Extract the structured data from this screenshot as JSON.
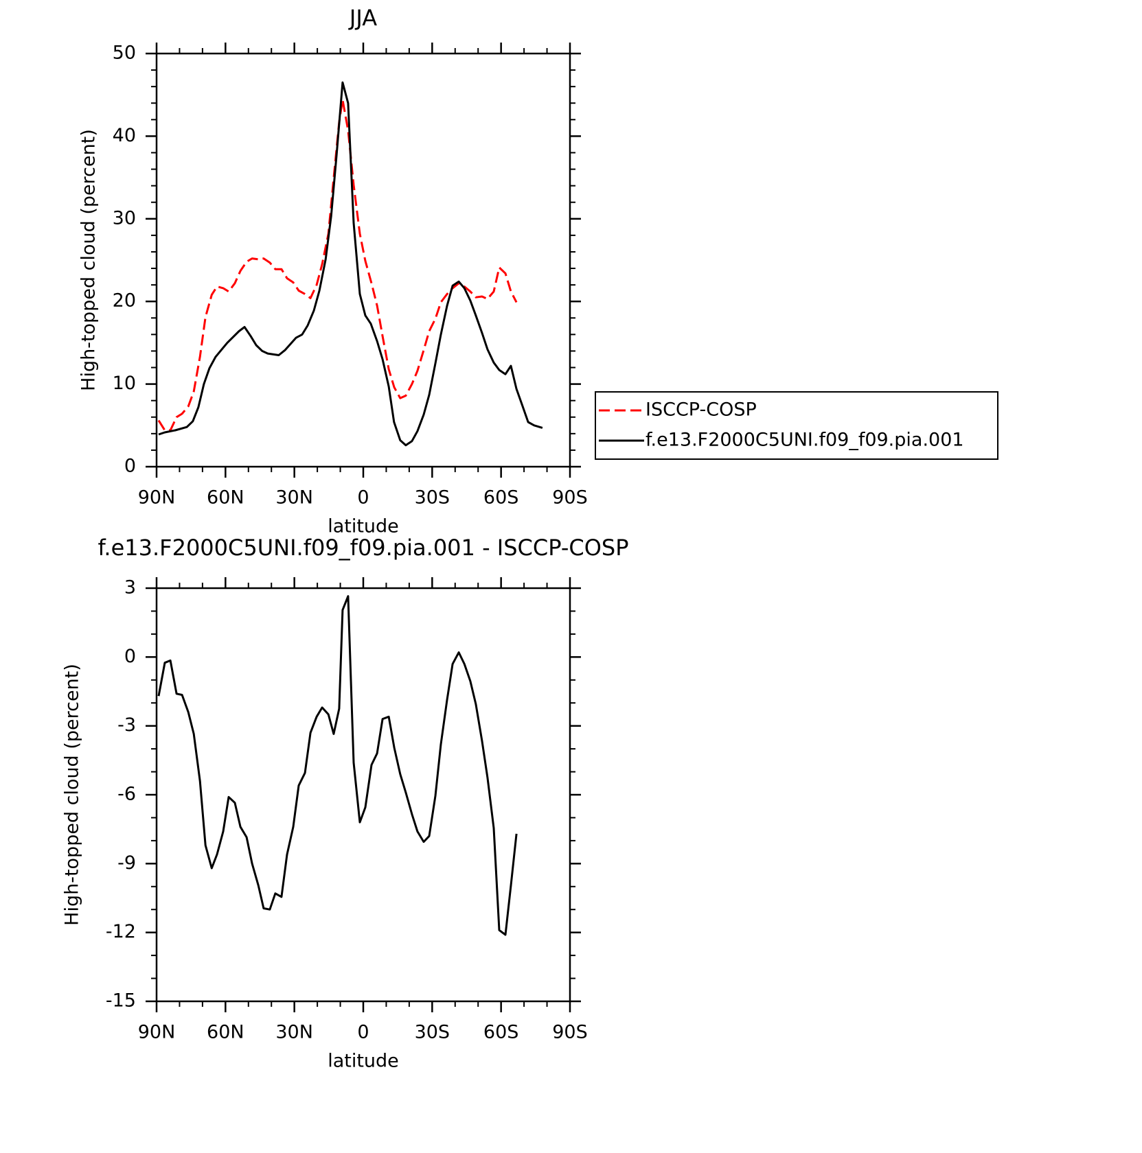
{
  "chart_data": [
    {
      "type": "line",
      "title": "JJA",
      "xlabel": "latitude",
      "ylabel": "High-topped cloud (percent)",
      "xlim": [
        90,
        -90
      ],
      "xticks": [
        {
          "value": 90,
          "label": "90N"
        },
        {
          "value": 60,
          "label": "60N"
        },
        {
          "value": 30,
          "label": "30N"
        },
        0,
        {
          "value": -30,
          "label": "30S"
        },
        {
          "value": -60,
          "label": "60S"
        },
        {
          "value": -90,
          "label": "90S"
        }
      ],
      "xminorticks": [
        80,
        70,
        50,
        40,
        20,
        10,
        -10,
        -20,
        -40,
        -50,
        -70,
        -80
      ],
      "ylim": [
        0,
        50
      ],
      "yticks": [
        0,
        10,
        20,
        30,
        40,
        50
      ],
      "yminorticks": [
        2,
        4,
        6,
        8,
        12,
        14,
        16,
        18,
        22,
        24,
        26,
        28,
        32,
        34,
        36,
        38,
        42,
        44,
        46,
        48
      ],
      "legend": "right",
      "series": [
        {
          "name": "ISCCP-COSP",
          "color": "#ff0000",
          "dash": true,
          "x": [
            89.1,
            86.4,
            84.0,
            81.3,
            78.9,
            76.2,
            73.8,
            71.1,
            68.7,
            66.0,
            63.7,
            61.0,
            58.6,
            55.9,
            53.5,
            50.8,
            48.4,
            45.7,
            43.4,
            40.7,
            38.3,
            35.6,
            33.2,
            30.5,
            28.1,
            25.4,
            23.0,
            20.3,
            17.9,
            15.2,
            12.9,
            10.5,
            9.0,
            6.6,
            4.2,
            1.5,
            -0.9,
            -3.6,
            -6.0,
            -8.4,
            -11.1,
            -13.5,
            -16.1,
            -18.5,
            -21.2,
            -23.6,
            -26.3,
            -28.7,
            -31.4,
            -33.8,
            -36.5,
            -38.9,
            -41.6,
            -44.0,
            -46.6,
            -49.0,
            -51.7,
            -54.1,
            -56.8,
            -59.2,
            -61.9,
            -64.3,
            -66.7
          ],
          "values": [
            5.6,
            4.4,
            4.4,
            6,
            6.4,
            7.3,
            9.1,
            13.3,
            18.1,
            20.8,
            21.8,
            21.6,
            21.2,
            22.2,
            23.7,
            24.8,
            25.2,
            25.1,
            25.2,
            24.7,
            23.9,
            23.9,
            22.8,
            22.3,
            21.3,
            20.9,
            20.4,
            22,
            24.5,
            28.2,
            34.9,
            41.7,
            44.4,
            40.7,
            34.1,
            28.2,
            24.9,
            22.2,
            19.5,
            15.8,
            11.8,
            9.6,
            8.3,
            8.6,
            10,
            11.6,
            14.1,
            16.4,
            17.9,
            19.9,
            20.9,
            21.6,
            22.2,
            21.8,
            21.2,
            20.5,
            20.6,
            20.3,
            21.2,
            24.1,
            23.4,
            21.2,
            19.9
          ]
        },
        {
          "name": "f.e13.F2000C5UNI.f09_f09.pia.001",
          "color": "#000000",
          "dash": false,
          "x": [
            89.1,
            86.4,
            81.9,
            76.8,
            74.2,
            71.8,
            69.4,
            67.0,
            64.3,
            59.2,
            54.1,
            51.7,
            49.0,
            46.6,
            44.0,
            41.6,
            36.8,
            34.1,
            29.3,
            26.6,
            24.2,
            21.5,
            19.1,
            16.4,
            14.0,
            11.6,
            9.0,
            6.6,
            4.2,
            1.5,
            -0.9,
            -3.3,
            -6.0,
            -8.4,
            -11.1,
            -13.4,
            -16.1,
            -18.5,
            -21.2,
            -23.6,
            -26.3,
            -28.7,
            -31.4,
            -33.8,
            -36.5,
            -38.9,
            -41.6,
            -44.0,
            -46.6,
            -49.0,
            -51.7,
            -54.1,
            -56.8,
            -59.2,
            -61.9,
            -64.3,
            -66.7,
            -69.4,
            -71.8,
            -74.4,
            -78.0
          ],
          "values": [
            3.9,
            4.15,
            4.4,
            4.8,
            5.5,
            7.2,
            10,
            11.9,
            13.3,
            15,
            16.4,
            16.9,
            15.8,
            14.7,
            14,
            13.7,
            13.5,
            14.1,
            15.6,
            16,
            17.1,
            18.9,
            21.3,
            25.1,
            30.3,
            37.8,
            46.5,
            44,
            29.5,
            20.9,
            18.3,
            17.3,
            15.2,
            13,
            9.7,
            5.4,
            3.2,
            2.6,
            3.1,
            4.3,
            6.3,
            8.7,
            12.5,
            16,
            19.5,
            21.9,
            22.4,
            21.6,
            20.1,
            18.3,
            16.2,
            14.2,
            12.6,
            11.7,
            11.2,
            12.2,
            9.4,
            7.3,
            5.4,
            5,
            4.7
          ]
        }
      ]
    },
    {
      "type": "line",
      "title": "f.e13.F2000C5UNI.f09_f09.pia.001 - ISCCP-COSP",
      "xlabel": "latitude",
      "ylabel": "High-topped cloud (percent)",
      "xlim": [
        90,
        -90
      ],
      "xticks": [
        {
          "value": 90,
          "label": "90N"
        },
        {
          "value": 60,
          "label": "60N"
        },
        {
          "value": 30,
          "label": "30N"
        },
        0,
        {
          "value": -30,
          "label": "30S"
        },
        {
          "value": -60,
          "label": "60S"
        },
        {
          "value": -90,
          "label": "90S"
        }
      ],
      "xminorticks": [
        80,
        70,
        50,
        40,
        20,
        10,
        -10,
        -20,
        -40,
        -50,
        -70,
        -80
      ],
      "ylim": [
        -15,
        3
      ],
      "yticks": [
        -15,
        -12,
        -9,
        -6,
        -3,
        0,
        3
      ],
      "yminorticks": [
        -14,
        -13,
        -11,
        -10,
        -8,
        -7,
        -5,
        -4,
        -2,
        -1,
        1,
        2
      ],
      "series": [
        {
          "color": "#000000",
          "dash": false,
          "x": [
            89.1,
            86.4,
            84.0,
            81.3,
            78.9,
            76.2,
            73.8,
            71.1,
            68.7,
            66.0,
            63.7,
            61.0,
            58.6,
            55.9,
            53.5,
            50.8,
            48.4,
            45.7,
            43.4,
            40.7,
            38.3,
            35.6,
            33.2,
            30.5,
            28.1,
            25.4,
            23.0,
            20.3,
            17.9,
            15.2,
            12.9,
            10.5,
            9.0,
            6.6,
            4.2,
            1.5,
            -0.9,
            -3.6,
            -6.0,
            -8.4,
            -11.1,
            -13.5,
            -16.1,
            -18.5,
            -21.2,
            -23.6,
            -26.3,
            -28.7,
            -31.4,
            -33.8,
            -36.5,
            -38.9,
            -41.6,
            -44.0,
            -46.6,
            -49.0,
            -51.7,
            -54.1,
            -56.8,
            -59.2,
            -61.9,
            -64.3,
            -66.7
          ],
          "values": [
            -1.7,
            -0.25,
            -0.15,
            -1.6,
            -1.65,
            -2.4,
            -3.35,
            -5.4,
            -8.2,
            -9.2,
            -8.6,
            -7.6,
            -6.1,
            -6.35,
            -7.4,
            -7.85,
            -9,
            -9.95,
            -10.95,
            -11,
            -10.3,
            -10.45,
            -8.6,
            -7.4,
            -5.6,
            -5.05,
            -3.3,
            -2.6,
            -2.2,
            -2.5,
            -3.35,
            -2.25,
            2.05,
            2.65,
            -4.6,
            -7.2,
            -6.55,
            -4.7,
            -4.2,
            -2.7,
            -2.6,
            -3.95,
            -5.1,
            -5.9,
            -6.85,
            -7.6,
            -8.05,
            -7.8,
            -6.05,
            -3.8,
            -1.85,
            -0.3,
            0.2,
            -0.3,
            -1.05,
            -2.05,
            -3.65,
            -5.25,
            -7.45,
            -11.9,
            -12.1,
            -9.95,
            -7.7
          ]
        }
      ]
    }
  ]
}
